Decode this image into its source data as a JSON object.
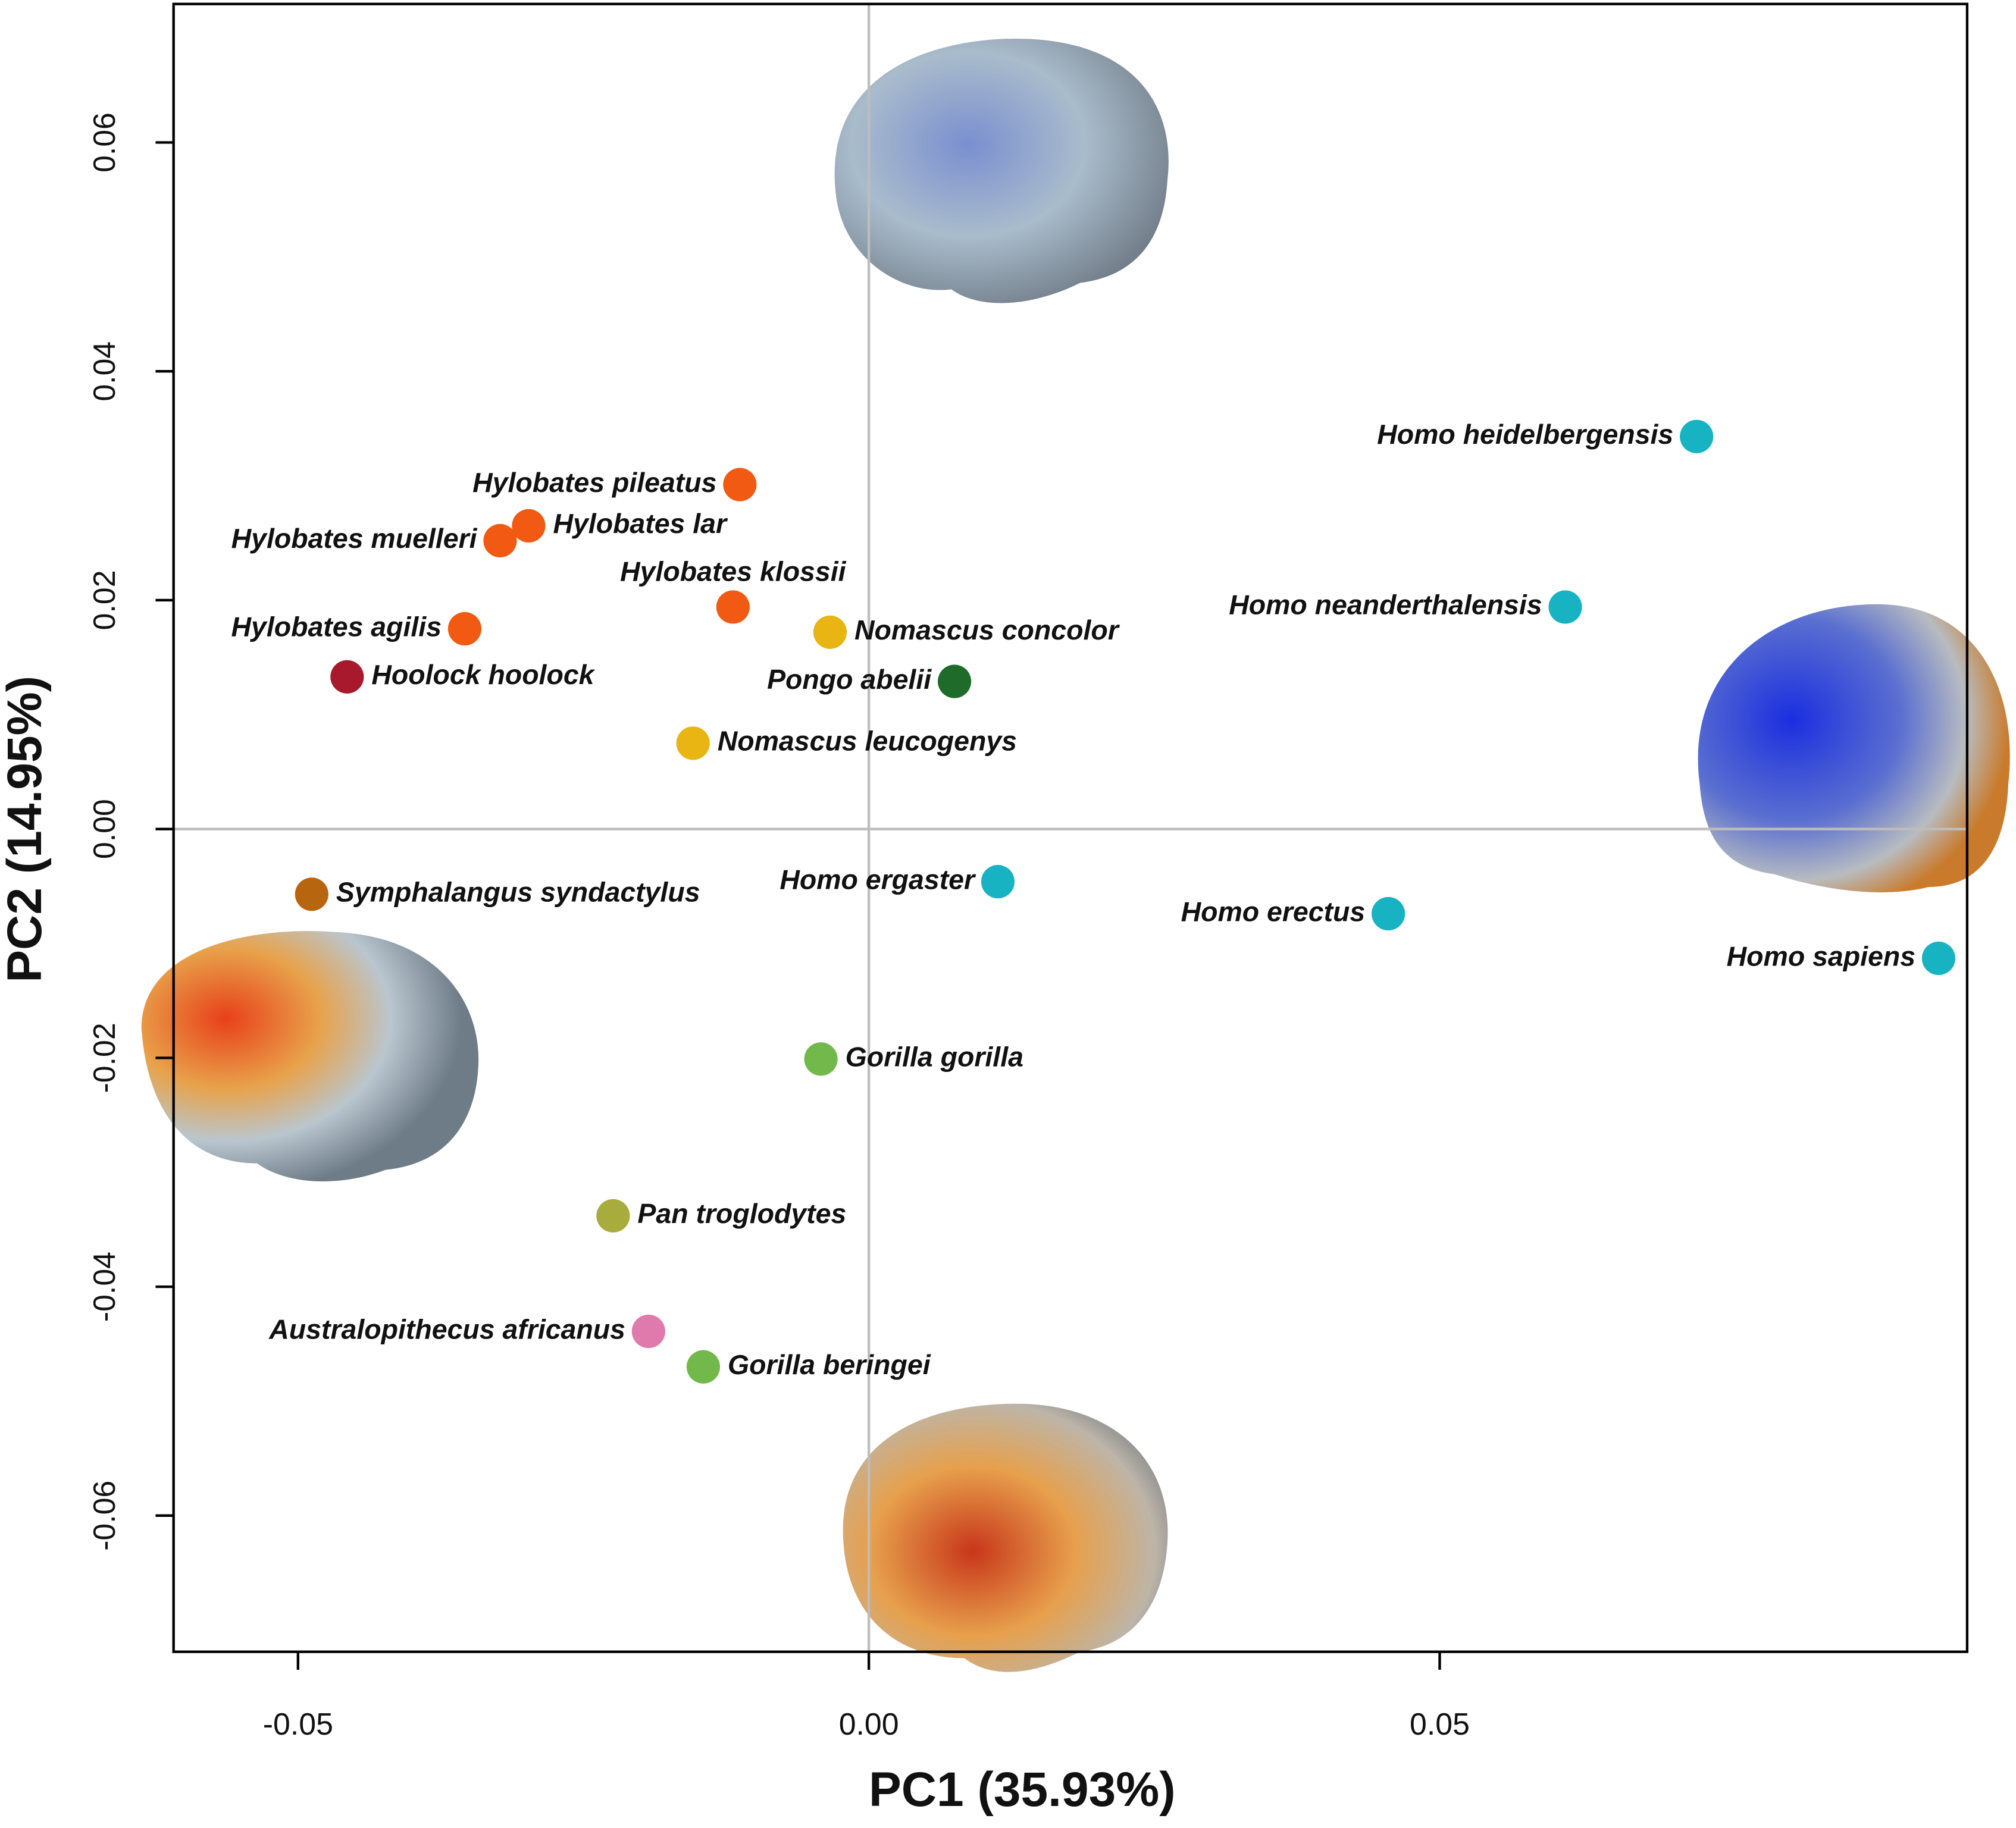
{
  "chart_data": {
    "type": "scatter",
    "x_label": "PC1 (35.93%)",
    "y_label": "PC2 (14.95%)",
    "xlim": [
      -0.0609,
      0.0962
    ],
    "ylim": [
      -0.0719,
      0.0721
    ],
    "xticks": [
      {
        "value": -0.05,
        "label": "-0.05"
      },
      {
        "value": 0,
        "label": "0.00"
      },
      {
        "value": 0.05,
        "label": "0.05"
      }
    ],
    "yticks": [
      {
        "value": -0.06,
        "label": "-0.06"
      },
      {
        "value": -0.04,
        "label": "-0.04"
      },
      {
        "value": -0.02,
        "label": "-0.02"
      },
      {
        "value": 0,
        "label": "0.00"
      },
      {
        "value": 0.02,
        "label": "0.02"
      },
      {
        "value": 0.04,
        "label": "0.04"
      },
      {
        "value": 0.06,
        "label": "0.06"
      }
    ],
    "reference_lines": {
      "x": 0,
      "y": 0
    },
    "points": {
      "labels": [
        "Homo heidelbergensis",
        "Homo neanderthalensis",
        "Homo sapiens",
        "Homo erectus",
        "Homo ergaster",
        "Hylobates pileatus",
        "Hylobates lar",
        "Hylobates muelleri",
        "Hylobates klossii",
        "Hylobates agilis",
        "Hoolock hoolock",
        "Nomascus concolor",
        "Pongo abelii",
        "Nomascus leucogenys",
        "Symphalangus syndactylus",
        "Gorilla gorilla",
        "Pan troglodytes",
        "Australopithecus africanus",
        "Gorilla beringei"
      ],
      "x": [
        0.0725,
        0.061,
        0.0937,
        0.0455,
        0.0113,
        -0.0113,
        -0.0298,
        -0.0323,
        -0.0119,
        -0.0354,
        -0.0457,
        -0.0034,
        0.0075,
        -0.0154,
        -0.0488,
        -0.0042,
        -0.0224,
        -0.0193,
        -0.0145
      ],
      "y": [
        0.0343,
        0.0194,
        -0.0113,
        -0.0074,
        -0.0046,
        0.0301,
        0.0265,
        0.0252,
        0.0194,
        0.0175,
        0.0133,
        0.0172,
        0.0129,
        0.0075,
        -0.0057,
        -0.0201,
        -0.0338,
        -0.0439,
        -0.047
      ],
      "colors": [
        "#18b3c2",
        "#18b3c2",
        "#18b3c2",
        "#18b3c2",
        "#18b3c2",
        "#f25a14",
        "#f25a14",
        "#f25a14",
        "#f25a14",
        "#f25a14",
        "#a8192e",
        "#e8b512",
        "#1f6b2a",
        "#e8b512",
        "#b8650f",
        "#72b84a",
        "#a7ac3c",
        "#e07aac",
        "#72b84a"
      ]
    }
  }
}
